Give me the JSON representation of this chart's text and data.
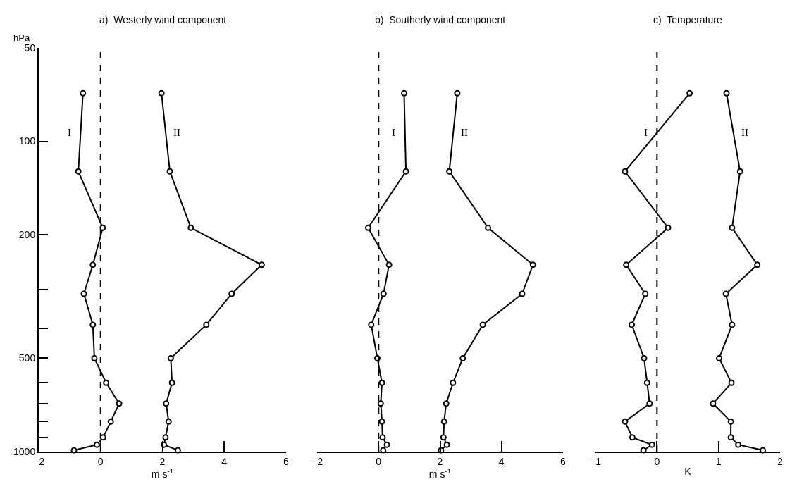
{
  "chart_data": [
    {
      "type": "line",
      "title": "a)  Westerly wind component",
      "xlabel": "m s$^{-1}$",
      "ylabel": "hPa",
      "marker": "circle",
      "xlim": [
        -2,
        6
      ],
      "xticks": [
        -2,
        0,
        2,
        4,
        6
      ],
      "ylim": [
        1000,
        50
      ],
      "yticks": [
        50,
        100,
        200,
        {
          "value": 300,
          "label": null
        },
        {
          "value": 400,
          "label": null
        },
        500,
        {
          "value": 600,
          "label": null
        },
        {
          "value": 700,
          "label": null
        },
        {
          "value": 800,
          "label": null
        },
        {
          "value": 900,
          "label": null
        },
        1000
      ],
      "log": "y",
      "ref_lines": [
        {
          "axis": "x",
          "value": 0,
          "line_style": "dashed",
          "color": "#000000"
        }
      ],
      "series": [
        {
          "name": "I",
          "color": "#000000",
          "x": [
            -0.57,
            -0.72,
            0.07,
            -0.25,
            -0.54,
            -0.25,
            -0.2,
            0.18,
            0.6,
            0.33,
            0.08,
            -0.12,
            -0.86
          ],
          "values": [
            70,
            125,
            190,
            250,
            310,
            390,
            500,
            600,
            700,
            800,
            900,
            950,
            990
          ]
        },
        {
          "name": "II",
          "color": "#000000",
          "x": [
            1.97,
            2.24,
            2.92,
            5.21,
            4.24,
            3.42,
            2.27,
            2.31,
            2.12,
            2.2,
            2.1,
            2.05,
            2.5
          ],
          "values": [
            70,
            125,
            190,
            250,
            310,
            390,
            500,
            600,
            700,
            800,
            900,
            950,
            990
          ]
        }
      ]
    },
    {
      "type": "line",
      "title": "b)  Southerly wind component",
      "xlabel": "m s$^{-1}$",
      "marker": "circle",
      "xlim": [
        -2,
        6
      ],
      "xticks": [
        -2,
        0,
        2,
        4,
        6
      ],
      "ylim": [
        1000,
        50
      ],
      "log": "y",
      "tick_labels": "x",
      "ref_lines": [
        {
          "axis": "x",
          "value": 0,
          "line_style": "dashed",
          "color": "#000000"
        }
      ],
      "series": [
        {
          "name": "I",
          "color": "#000000",
          "x": [
            0.83,
            0.89,
            -0.34,
            0.34,
            0.16,
            -0.24,
            -0.04,
            0.11,
            0.07,
            0.11,
            0.13,
            0.27,
            0.15
          ],
          "values": [
            70,
            125,
            190,
            250,
            310,
            390,
            500,
            600,
            700,
            800,
            900,
            950,
            990
          ]
        },
        {
          "name": "II",
          "color": "#000000",
          "x": [
            2.56,
            2.3,
            3.56,
            5.02,
            4.67,
            3.39,
            2.74,
            2.42,
            2.2,
            2.13,
            2.11,
            2.22,
            2.03
          ],
          "values": [
            70,
            125,
            190,
            250,
            310,
            390,
            500,
            600,
            700,
            800,
            900,
            950,
            990
          ]
        }
      ]
    },
    {
      "type": "line",
      "title": "c)  Temperature",
      "xlabel": "K",
      "marker": "circle",
      "xlim": [
        -1,
        2
      ],
      "xticks": [
        -1,
        0,
        1,
        2
      ],
      "ylim": [
        1000,
        50
      ],
      "log": "y",
      "tick_labels": "x",
      "ref_lines": [
        {
          "axis": "x",
          "value": 0,
          "line_style": "dashed",
          "color": "#000000"
        }
      ],
      "series": [
        {
          "name": "I",
          "color": "#000000",
          "x": [
            0.53,
            -0.52,
            0.18,
            -0.5,
            -0.19,
            -0.41,
            -0.21,
            -0.16,
            -0.12,
            -0.52,
            -0.4,
            -0.08,
            -0.22
          ],
          "values": [
            70,
            125,
            190,
            250,
            310,
            390,
            500,
            600,
            700,
            800,
            900,
            950,
            990
          ]
        },
        {
          "name": "II",
          "color": "#000000",
          "x": [
            1.13,
            1.35,
            1.22,
            1.63,
            1.12,
            1.22,
            1.01,
            1.21,
            0.91,
            1.2,
            1.2,
            1.32,
            1.72
          ],
          "values": [
            70,
            125,
            190,
            250,
            310,
            390,
            500,
            600,
            700,
            800,
            900,
            950,
            990
          ]
        }
      ]
    }
  ]
}
